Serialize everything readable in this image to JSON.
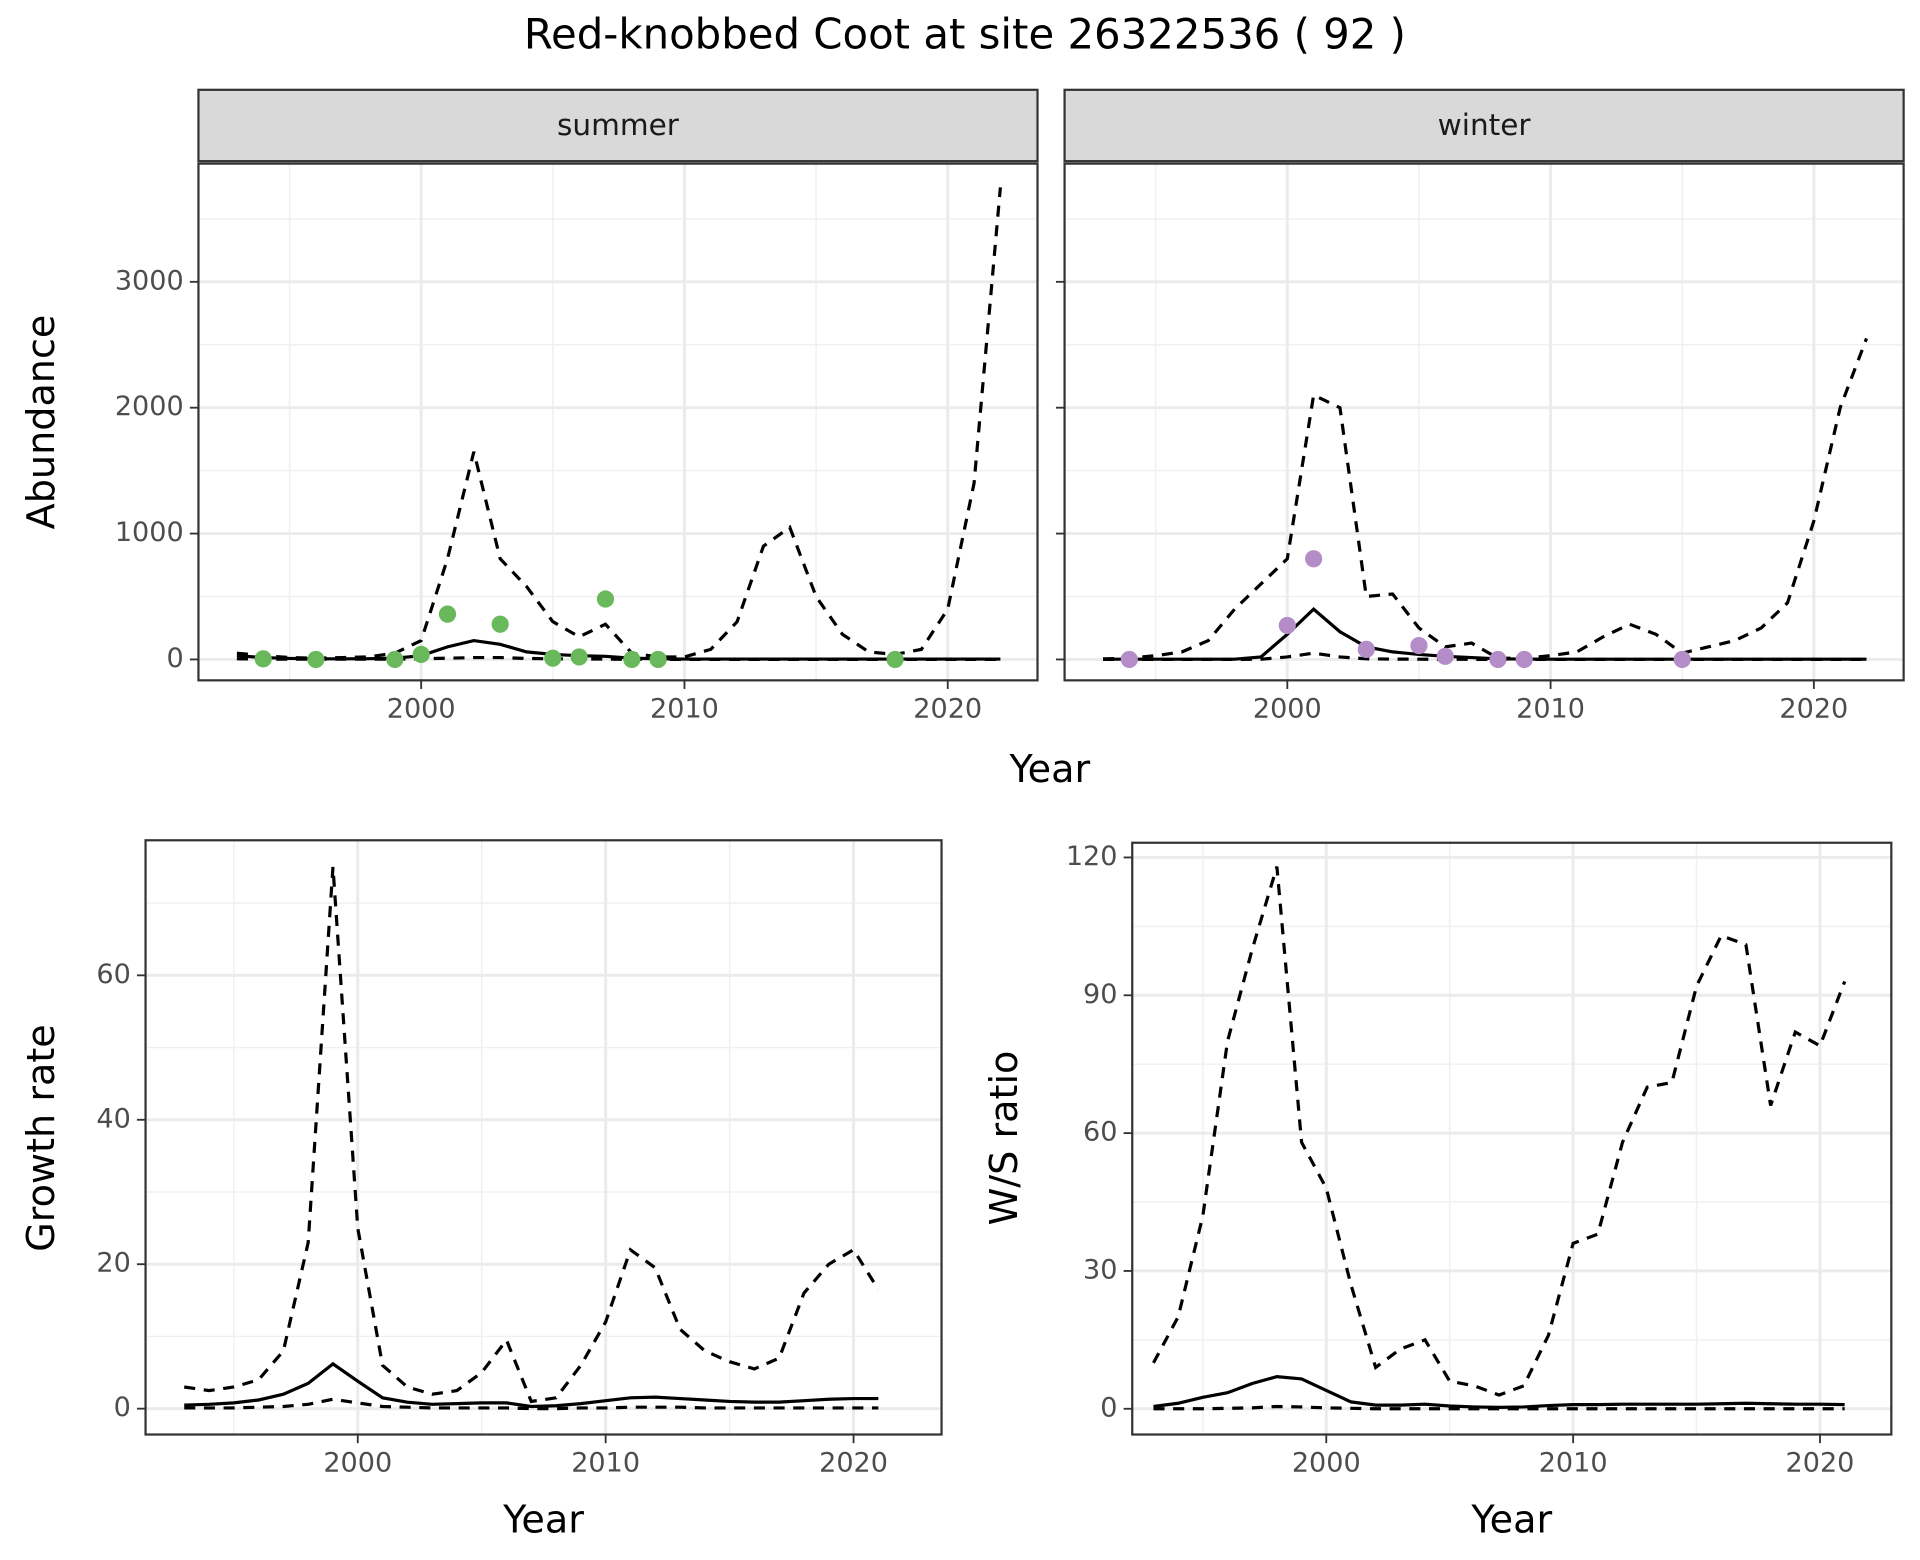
{
  "title": "Red-knobbed Coot at site 26322536 ( 92 )",
  "shared_xlabel": "Year",
  "chart_data": [
    {
      "type": "line",
      "strip": "summer",
      "ylabel": "Abundance",
      "xlim": [
        1991.54,
        2023.41
      ],
      "xticks": [
        2000,
        2010,
        2020
      ],
      "xminor_ticks": [
        1995,
        2005,
        2015
      ],
      "ylim": [
        -166,
        3939
      ],
      "yticks": [
        0,
        1000,
        2000,
        3000
      ],
      "yminor_ticks": [
        500,
        1500,
        2500,
        3500
      ],
      "grid": true,
      "x": [
        1993,
        1994,
        1995,
        1996,
        1997,
        1998,
        1999,
        2000,
        2001,
        2002,
        2003,
        2004,
        2005,
        2006,
        2007,
        2008,
        2009,
        2010,
        2011,
        2012,
        2013,
        2014,
        2015,
        2016,
        2017,
        2018,
        2019,
        2020,
        2021,
        2022
      ],
      "series": [
        {
          "style": "dashed",
          "color": "#000000",
          "values": [
            50,
            30,
            15,
            10,
            15,
            20,
            50,
            150,
            800,
            1650,
            800,
            580,
            300,
            180,
            280,
            50,
            20,
            20,
            80,
            300,
            900,
            1050,
            500,
            200,
            60,
            40,
            80,
            400,
            1400,
            3750
          ]
        },
        {
          "style": "solid",
          "color": "#000000",
          "values": [
            30,
            15,
            8,
            5,
            5,
            6,
            10,
            30,
            100,
            150,
            120,
            60,
            40,
            30,
            25,
            10,
            5,
            3,
            3,
            3,
            3,
            3,
            3,
            3,
            3,
            3,
            3,
            3,
            3,
            3
          ]
        },
        {
          "style": "dashed",
          "color": "#000000",
          "values": [
            5,
            3,
            2,
            2,
            2,
            2,
            3,
            5,
            10,
            15,
            15,
            8,
            5,
            4,
            3,
            1,
            0,
            0,
            0,
            0,
            0,
            0,
            0,
            0,
            0,
            0,
            0,
            0,
            0,
            0
          ]
        }
      ],
      "points": {
        "color": "#6ab85c",
        "x": [
          1994,
          1996,
          1999,
          2000,
          2001,
          2003,
          2005,
          2006,
          2007,
          2008,
          2009,
          2018
        ],
        "values": [
          5,
          0,
          0,
          40,
          360,
          280,
          10,
          20,
          480,
          0,
          0,
          0
        ]
      }
    },
    {
      "type": "line",
      "strip": "winter",
      "xlim": [
        1991.54,
        2023.41
      ],
      "xticks": [
        2000,
        2010,
        2020
      ],
      "xminor_ticks": [
        1995,
        2005,
        2015
      ],
      "ylim": [
        -166,
        3939
      ],
      "yticks": [
        0,
        1000,
        2000,
        3000
      ],
      "yminor_ticks": [
        500,
        1500,
        2500,
        3500
      ],
      "grid": true,
      "x": [
        1993,
        1994,
        1995,
        1996,
        1997,
        1998,
        1999,
        2000,
        2001,
        2002,
        2003,
        2004,
        2005,
        2006,
        2007,
        2008,
        2009,
        2010,
        2011,
        2012,
        2013,
        2014,
        2015,
        2016,
        2017,
        2018,
        2019,
        2020,
        2021,
        2022
      ],
      "series": [
        {
          "style": "dashed",
          "color": "#000000",
          "values": [
            5,
            10,
            30,
            60,
            150,
            400,
            600,
            800,
            2100,
            2000,
            500,
            520,
            250,
            100,
            130,
            10,
            10,
            30,
            60,
            180,
            280,
            200,
            50,
            100,
            150,
            250,
            450,
            1100,
            2000,
            2550
          ]
        },
        {
          "style": "solid",
          "color": "#000000",
          "values": [
            2,
            2,
            2,
            2,
            2,
            2,
            20,
            200,
            400,
            220,
            100,
            60,
            40,
            25,
            15,
            5,
            3,
            2,
            2,
            2,
            2,
            2,
            2,
            2,
            2,
            2,
            2,
            2,
            2,
            2
          ]
        },
        {
          "style": "dashed",
          "color": "#000000",
          "values": [
            0,
            0,
            0,
            0,
            0,
            0,
            2,
            20,
            50,
            20,
            5,
            3,
            2,
            1,
            1,
            0,
            0,
            0,
            0,
            0,
            0,
            0,
            0,
            0,
            0,
            0,
            0,
            0,
            0,
            0
          ]
        }
      ],
      "points": {
        "color": "#b48cc8",
        "x": [
          1994,
          2000,
          2001,
          2003,
          2005,
          2006,
          2008,
          2009,
          2015
        ],
        "values": [
          0,
          270,
          800,
          80,
          110,
          25,
          0,
          0,
          0
        ]
      }
    },
    {
      "type": "line",
      "xlabel": "Year",
      "ylabel": "Growth rate",
      "xlim": [
        1991.44,
        2023.55
      ],
      "xticks": [
        2000,
        2010,
        2020
      ],
      "xminor_ticks": [
        1995,
        2005,
        2015
      ],
      "ylim": [
        -3.58,
        78.7
      ],
      "yticks": [
        0,
        20,
        40,
        60
      ],
      "yminor_ticks": [
        10,
        30,
        50,
        70
      ],
      "grid": true,
      "x": [
        1993,
        1994,
        1995,
        1996,
        1997,
        1998,
        1999,
        2000,
        2001,
        2002,
        2003,
        2004,
        2005,
        2006,
        2007,
        2008,
        2009,
        2010,
        2011,
        2012,
        2013,
        2014,
        2015,
        2016,
        2017,
        2018,
        2019,
        2020,
        2021
      ],
      "series": [
        {
          "style": "dashed",
          "color": "#000000",
          "values": [
            3,
            2.5,
            3,
            4,
            8,
            23,
            75,
            25,
            6,
            3,
            2,
            2.5,
            5,
            9.5,
            1,
            1.5,
            6,
            12,
            22,
            19.5,
            11,
            8,
            6.5,
            5.5,
            7,
            16,
            20,
            22,
            16.5
          ]
        },
        {
          "style": "solid",
          "color": "#000000",
          "values": [
            0.5,
            0.6,
            0.8,
            1.2,
            2,
            3.5,
            6.2,
            3.8,
            1.5,
            0.9,
            0.6,
            0.7,
            0.8,
            0.8,
            0.3,
            0.4,
            0.7,
            1.1,
            1.5,
            1.6,
            1.4,
            1.2,
            1,
            0.9,
            0.9,
            1.1,
            1.3,
            1.4,
            1.4
          ]
        },
        {
          "style": "dashed",
          "color": "#000000",
          "values": [
            0.1,
            0.1,
            0.1,
            0.2,
            0.3,
            0.6,
            1.3,
            0.8,
            0.3,
            0.2,
            0.1,
            0.1,
            0.1,
            0.1,
            0,
            0,
            0.1,
            0.1,
            0.2,
            0.2,
            0.2,
            0.1,
            0.1,
            0.1,
            0.1,
            0.1,
            0.1,
            0.1,
            0.1
          ]
        }
      ]
    },
    {
      "type": "line",
      "xlabel": "Year",
      "ylabel": "W/S ratio",
      "xlim": [
        1992.14,
        2022.89
      ],
      "xticks": [
        2000,
        2010,
        2020
      ],
      "xminor_ticks": [
        1995,
        2005,
        2015
      ],
      "ylim": [
        -5.6,
        123.2
      ],
      "yticks": [
        0,
        30,
        60,
        90,
        120
      ],
      "yminor_ticks": [
        15,
        45,
        75,
        105
      ],
      "grid": true,
      "x": [
        1993,
        1994,
        1995,
        1996,
        1997,
        1998,
        1999,
        2000,
        2001,
        2002,
        2003,
        2004,
        2005,
        2006,
        2007,
        2008,
        2009,
        2010,
        2011,
        2012,
        2013,
        2014,
        2015,
        2016,
        2017,
        2018,
        2019,
        2020,
        2021
      ],
      "series": [
        {
          "style": "dashed",
          "color": "#000000",
          "values": [
            10,
            20,
            42,
            80,
            100,
            118,
            58,
            48,
            27,
            9,
            13,
            15,
            6,
            5,
            3,
            5,
            16,
            36,
            38,
            58,
            70,
            71,
            92,
            103,
            101,
            66,
            82,
            79,
            93
          ]
        },
        {
          "style": "solid",
          "color": "#000000",
          "values": [
            0.5,
            1.2,
            2.5,
            3.5,
            5.5,
            7,
            6.5,
            4,
            1.5,
            0.8,
            0.8,
            1,
            0.6,
            0.4,
            0.3,
            0.4,
            0.7,
            0.9,
            0.9,
            1,
            1,
            1,
            1,
            1.1,
            1.2,
            1.1,
            1,
            1,
            0.9
          ]
        },
        {
          "style": "dashed",
          "color": "#000000",
          "values": [
            0,
            0,
            0,
            0.1,
            0.2,
            0.5,
            0.4,
            0.2,
            0.1,
            0,
            0,
            0,
            0,
            0,
            0,
            0,
            0,
            0,
            0,
            0,
            0,
            0,
            0,
            0,
            0,
            0,
            0,
            0,
            0
          ]
        }
      ]
    }
  ]
}
